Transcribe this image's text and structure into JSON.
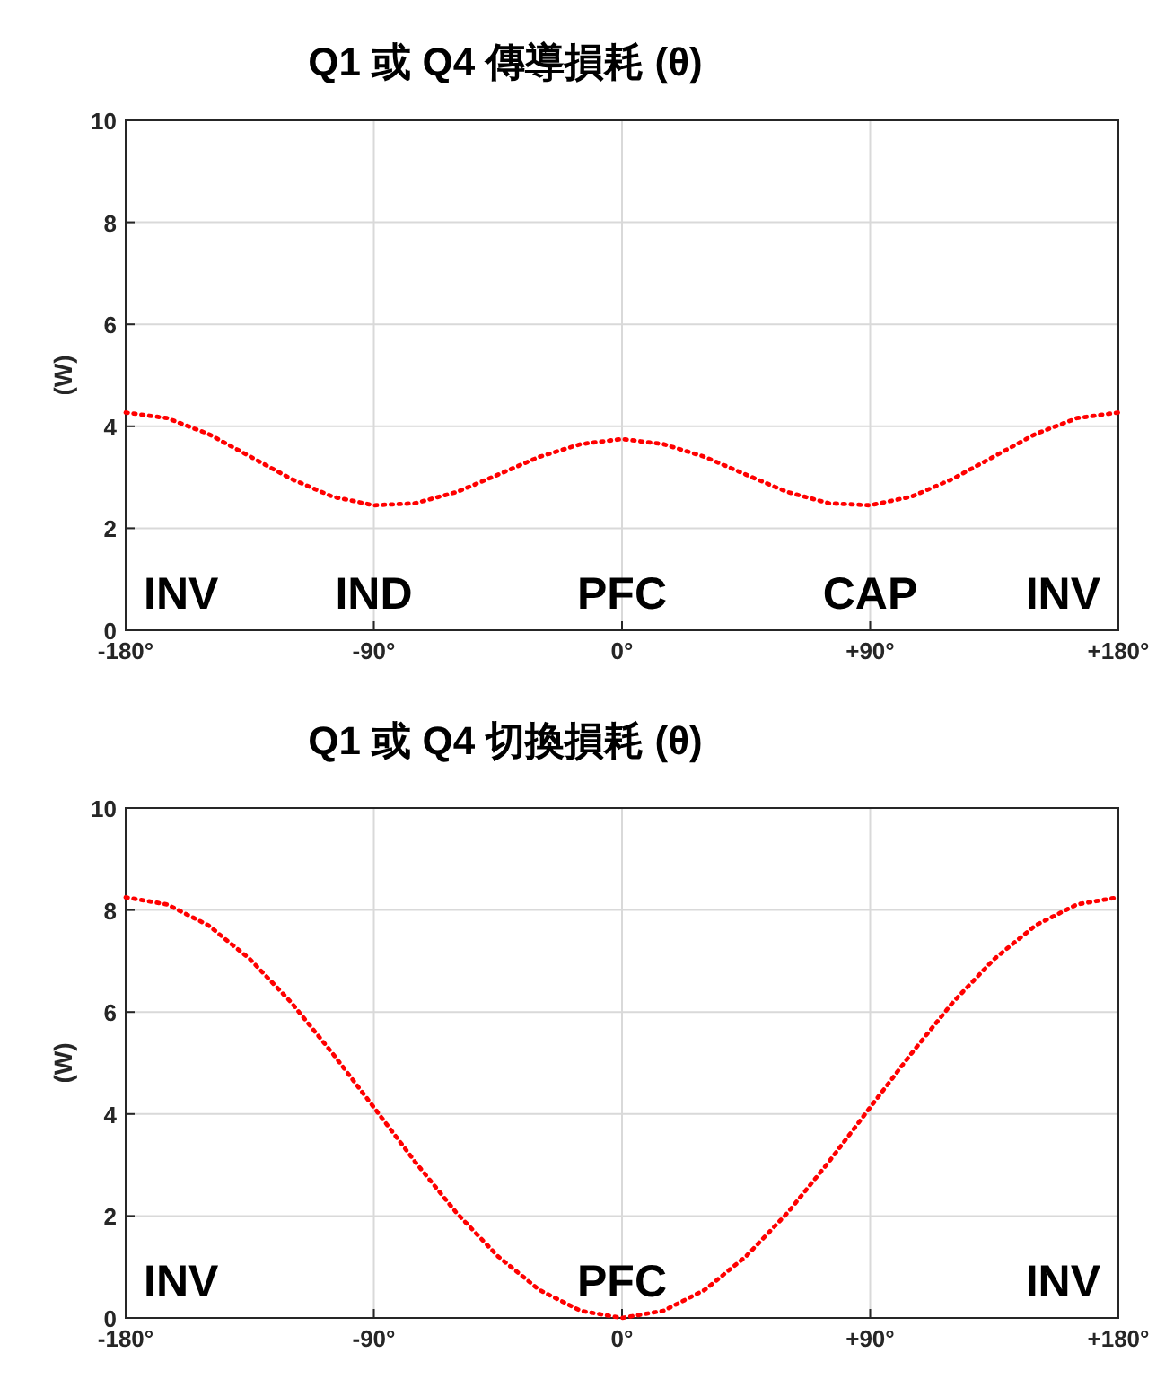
{
  "chart_data": [
    {
      "type": "line",
      "title": "Q1 或 Q4 傳導損耗 (θ)",
      "ylabel": "(W)",
      "x": [
        -180,
        -165,
        -150,
        -135,
        -120,
        -105,
        -90,
        -75,
        -60,
        -45,
        -30,
        -15,
        0,
        15,
        30,
        45,
        60,
        75,
        90,
        105,
        120,
        135,
        150,
        165,
        180
      ],
      "series": [
        {
          "color": "#ff0000",
          "values": [
            4.27,
            4.16,
            3.85,
            3.41,
            2.97,
            2.62,
            2.45,
            2.49,
            2.71,
            3.05,
            3.4,
            3.65,
            3.75,
            3.65,
            3.4,
            3.05,
            2.71,
            2.49,
            2.45,
            2.62,
            2.97,
            3.41,
            3.85,
            4.16,
            4.27
          ]
        }
      ],
      "xlim": [
        -180,
        180
      ],
      "xticks": [
        {
          "value": -180,
          "label": "-180°"
        },
        {
          "value": -90,
          "label": "-90°"
        },
        {
          "value": 0,
          "label": "0°"
        },
        {
          "value": 90,
          "label": "+90°"
        },
        {
          "value": 180,
          "label": "+180°"
        }
      ],
      "ylim": [
        0,
        10
      ],
      "yticks": [
        0,
        2,
        4,
        6,
        8,
        10
      ],
      "grid": true,
      "marker": "none",
      "line_style": "dotted",
      "annotations": [
        "INV",
        "IND",
        "PFC",
        "CAP",
        "INV"
      ]
    },
    {
      "type": "line",
      "title": "Q1 或 Q4 切換損耗 (θ)",
      "ylabel": "(W)",
      "x": [
        -180,
        -165,
        -150,
        -135,
        -120,
        -105,
        -90,
        -75,
        -60,
        -45,
        -30,
        -15,
        0,
        15,
        30,
        45,
        60,
        75,
        90,
        105,
        120,
        135,
        150,
        165,
        180
      ],
      "series": [
        {
          "color": "#ff0000",
          "values": [
            8.25,
            8.11,
            7.7,
            7.04,
            6.19,
            5.19,
            4.13,
            3.06,
            2.06,
            1.21,
            0.55,
            0.14,
            0,
            0.14,
            0.55,
            1.21,
            2.06,
            3.06,
            4.13,
            5.19,
            6.19,
            7.04,
            7.7,
            8.11,
            8.25
          ]
        }
      ],
      "xlim": [
        -180,
        180
      ],
      "xticks": [
        {
          "value": -180,
          "label": "-180°"
        },
        {
          "value": -90,
          "label": "-90°"
        },
        {
          "value": 0,
          "label": "0°"
        },
        {
          "value": 90,
          "label": "+90°"
        },
        {
          "value": 180,
          "label": "+180°"
        }
      ],
      "ylim": [
        0,
        10
      ],
      "yticks": [
        0,
        2,
        4,
        6,
        8,
        10
      ],
      "grid": true,
      "marker": "none",
      "line_style": "dotted",
      "annotations": [
        "INV",
        "PFC",
        "INV"
      ]
    }
  ]
}
